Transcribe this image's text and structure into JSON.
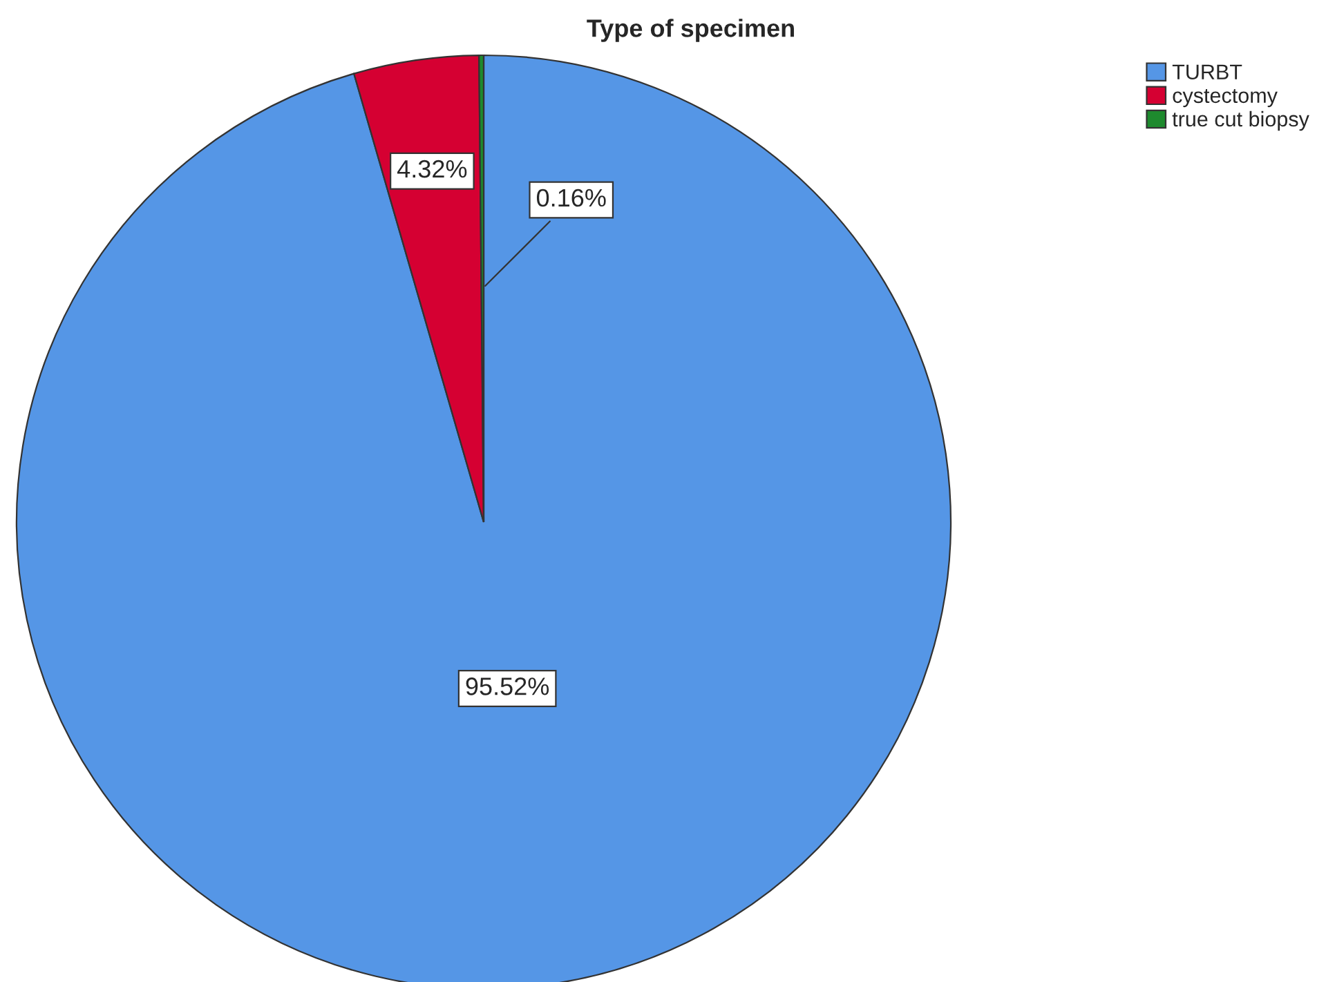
{
  "chart_data": {
    "type": "pie",
    "title": "Type of specimen",
    "categories": [
      "TURBT",
      "cystectomy",
      "true cut biopsy"
    ],
    "values": [
      95.52,
      4.32,
      0.16
    ],
    "colors": [
      "#5596e6",
      "#d50032",
      "#1e8a2e"
    ],
    "value_labels": [
      "95.52%",
      "4.32%",
      "0.16%"
    ],
    "legend": "top right"
  }
}
